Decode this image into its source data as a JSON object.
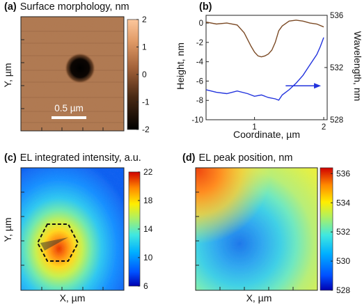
{
  "panels": {
    "a": {
      "letter": "(a)",
      "title": "Surface morphology, nm",
      "ylabel": "Y, µm",
      "scalebar_label": "0.5 µm"
    },
    "b": {
      "letter": "(b)"
    },
    "c": {
      "letter": "(c)",
      "title": "EL integrated intensity, a.u.",
      "xlabel": "X, µm",
      "ylabel": "Y, µm"
    },
    "d": {
      "letter": "(d)",
      "title": "EL peak position, nm",
      "xlabel": "X, µm"
    }
  },
  "colors": {
    "height_profile": "#7b4a25",
    "wavelength_profile": "#2233dd",
    "scalebar": "#ffffff",
    "hexagon": "#111111"
  },
  "chart_data": [
    {
      "id": "a",
      "type": "heatmap",
      "title": "Surface morphology, nm",
      "ylabel": "Y, µm",
      "colormap": "copper",
      "colorbar": {
        "min": -2,
        "max": 2,
        "ticks": [
          2,
          1,
          0,
          -1,
          -2
        ]
      },
      "scalebar": {
        "label": "0.5 µm",
        "length_um": 0.5
      },
      "features": [
        {
          "kind": "pit",
          "depth_nm": -2,
          "center": [
            0.42,
            0.38
          ],
          "radius_um": 0.18
        }
      ]
    },
    {
      "id": "b",
      "type": "line",
      "xlabel": "Coordinate, µm",
      "ylabel": "Height, nm",
      "y2label": "Wavelength, nm",
      "xlim": [
        0.3,
        2.05
      ],
      "ylim": [
        -10,
        0.8
      ],
      "y2lim": [
        528,
        536
      ],
      "xticks": [
        1,
        2
      ],
      "yticks": [
        0,
        -2,
        -4,
        -6,
        -8,
        -10
      ],
      "y2ticks": [
        536,
        532,
        528
      ],
      "series": [
        {
          "axis": "left",
          "x": [
            0.3,
            0.45,
            0.6,
            0.75,
            0.85,
            0.95,
            1.0,
            1.05,
            1.1,
            1.15,
            1.2,
            1.25,
            1.3,
            1.35,
            1.4,
            1.5,
            1.6,
            1.7,
            1.8,
            1.9,
            2.0
          ],
          "y": [
            0.1,
            -0.1,
            0.0,
            -0.2,
            -1.0,
            -2.4,
            -3.0,
            -3.4,
            -3.5,
            -3.4,
            -3.2,
            -2.8,
            -2.0,
            -0.8,
            -0.3,
            0.2,
            0.3,
            0.2,
            0.0,
            -0.1,
            -0.4
          ]
        },
        {
          "axis": "right",
          "x": [
            0.3,
            0.45,
            0.6,
            0.75,
            0.9,
            1.0,
            1.1,
            1.2,
            1.3,
            1.35,
            1.4,
            1.5,
            1.6,
            1.7,
            1.8,
            1.9,
            1.95,
            2.0
          ],
          "y": [
            530.3,
            530.1,
            530.0,
            530.2,
            530.0,
            529.8,
            529.9,
            529.7,
            529.6,
            529.5,
            529.9,
            530.3,
            530.8,
            531.4,
            532.2,
            533.0,
            533.6,
            534.3
          ]
        }
      ],
      "annotations": [
        {
          "kind": "arrow",
          "from": [
            1.45,
            530.6
          ],
          "to": [
            1.96,
            530.6
          ],
          "meaning": "points to right axis"
        }
      ]
    },
    {
      "id": "c",
      "type": "heatmap",
      "title": "EL integrated intensity, a.u.",
      "xlabel": "X, µm",
      "ylabel": "Y, µm",
      "colormap": "jet",
      "colorbar": {
        "min": 6,
        "max": 22,
        "ticks": [
          22,
          18,
          14,
          10,
          6
        ]
      },
      "features": [
        {
          "kind": "max",
          "value": 22,
          "center": [
            0.37,
            0.66
          ]
        },
        {
          "kind": "hexagon",
          "center": [
            0.37,
            0.66
          ]
        }
      ]
    },
    {
      "id": "d",
      "type": "heatmap",
      "title": "EL peak position, nm",
      "xlabel": "X, µm",
      "colormap": "jet",
      "colorbar": {
        "min": 528,
        "max": 536.4,
        "ticks": [
          536,
          534,
          532,
          530,
          528
        ]
      },
      "features": [
        {
          "kind": "max",
          "value": 536,
          "center": [
            0.05,
            0.05
          ]
        },
        {
          "kind": "min",
          "value": 529.4,
          "center": [
            0.36,
            0.62
          ]
        }
      ]
    }
  ]
}
